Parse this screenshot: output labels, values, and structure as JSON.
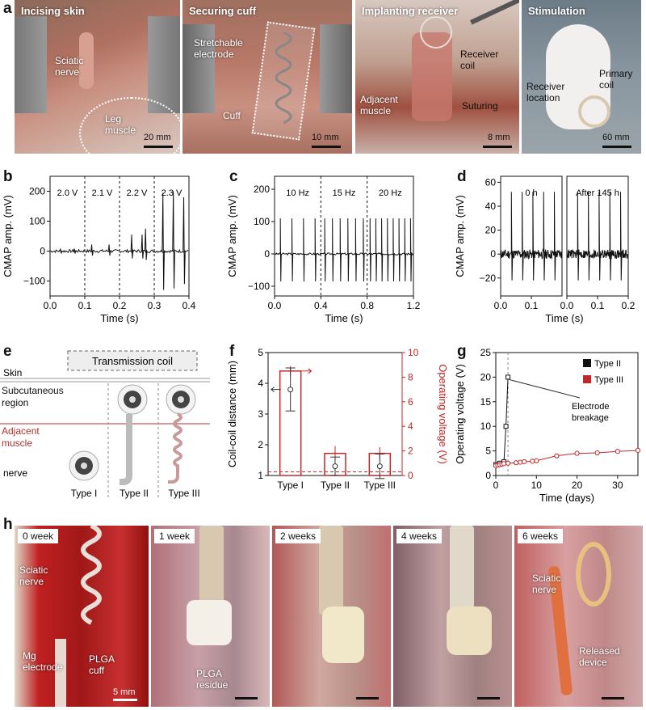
{
  "panel_labels": {
    "a": "a",
    "b": "b",
    "c": "c",
    "d": "d",
    "e": "e",
    "f": "f",
    "g": "g",
    "h": "h"
  },
  "panel_a": {
    "photos": [
      {
        "title": "Incising skin",
        "annotations": [
          "Sciatic nerve",
          "Leg muscle"
        ],
        "scale": "20 mm"
      },
      {
        "title": "Securing cuff",
        "annotations": [
          "Stretchable electrode",
          "Cuff"
        ],
        "scale": "10 mm"
      },
      {
        "title": "Implanting receiver",
        "annotations": [
          "Receiver coil",
          "Adjacent muscle",
          "Suturing"
        ],
        "scale": "8 mm"
      },
      {
        "title": "Stimulation",
        "annotations": [
          "Primary coil",
          "Receiver location"
        ],
        "scale": "60 mm"
      }
    ]
  },
  "panel_e": {
    "transmission_coil": "Transmission coil",
    "layers": [
      "Skin",
      "Subcutaneous region",
      "Adjacent muscle",
      "nerve"
    ],
    "types": [
      "Type I",
      "Type II",
      "Type III"
    ],
    "colors": {
      "muscle_line": "#b03030"
    }
  },
  "panel_h": {
    "photos": [
      {
        "title": "0 week",
        "annotations": [
          "Sciatic nerve",
          "Mg electrode",
          "PLGA cuff"
        ],
        "scale": "5 mm"
      },
      {
        "title": "1 week",
        "annotations": [
          "PLGA residue"
        ]
      },
      {
        "title": "2 weeks",
        "annotations": []
      },
      {
        "title": "4 weeks",
        "annotations": []
      },
      {
        "title": "6 weeks",
        "annotations": [
          "Sciatic nerve",
          "Released device"
        ]
      }
    ]
  },
  "chart_data": [
    {
      "id": "b",
      "type": "line",
      "xlabel": "Time (s)",
      "ylabel": "CMAP amp. (mV)",
      "xlim": [
        0,
        0.4
      ],
      "ylim": [
        -150,
        250
      ],
      "xticks": [
        "0.0",
        "0.1",
        "0.2",
        "0.3",
        "0.4"
      ],
      "yticks": [
        "−100",
        "0",
        "100",
        "200"
      ],
      "segments": [
        "2.0 V",
        "2.1 V",
        "2.2 V",
        "2.3 V"
      ],
      "dividers": [
        0.1,
        0.2,
        0.3
      ],
      "spikes": [
        {
          "x": 0.03,
          "up": 8,
          "down": -8
        },
        {
          "x": 0.07,
          "up": 8,
          "down": -8
        },
        {
          "x": 0.12,
          "up": 22,
          "down": -15
        },
        {
          "x": 0.17,
          "up": 22,
          "down": -15
        },
        {
          "x": 0.235,
          "up": 55,
          "down": -25
        },
        {
          "x": 0.265,
          "up": 55,
          "down": -25
        },
        {
          "x": 0.275,
          "up": 75,
          "down": -30
        },
        {
          "x": 0.325,
          "up": 195,
          "down": -130
        },
        {
          "x": 0.355,
          "up": 200,
          "down": -125
        },
        {
          "x": 0.385,
          "up": 180,
          "down": -110
        }
      ]
    },
    {
      "id": "c",
      "type": "line",
      "xlabel": "Time (s)",
      "ylabel": "CMAP amp. (mV)",
      "xlim": [
        0,
        1.2
      ],
      "ylim": [
        -130,
        240
      ],
      "xticks": [
        "0.0",
        "0.4",
        "0.8",
        "1.2"
      ],
      "yticks": [
        "−100",
        "0",
        "100",
        "200"
      ],
      "segments": [
        "10 Hz",
        "15 Hz",
        "20 Hz"
      ],
      "dividers": [
        0.4,
        0.8
      ],
      "rates": [
        10,
        15,
        20
      ],
      "amp_up": 110,
      "amp_down": -85
    },
    {
      "id": "d",
      "type": "line",
      "xlabel": "Time (s)",
      "ylabel": "CMAP amp. (mV)",
      "xlim": [
        0,
        0.2
      ],
      "ylim": [
        -35,
        65
      ],
      "xticks": [
        "0.0",
        "0.1",
        "0.2"
      ],
      "yticks": [
        "−20",
        "0",
        "20",
        "40",
        "60"
      ],
      "panels": [
        "0 h",
        "After 145 h"
      ],
      "amp_up": 52,
      "amp_down": -22
    },
    {
      "id": "f",
      "type": "bar",
      "categories": [
        "Type I",
        "Type II",
        "Type III"
      ],
      "ylabel": "Coil-coil distance (mm)",
      "ylabel_right": "Operating voltage (V)",
      "ylim": [
        1,
        5
      ],
      "ylim_right": [
        0,
        10
      ],
      "yticks": [
        "1",
        "2",
        "3",
        "4",
        "5"
      ],
      "yticks_right": [
        "0",
        "2",
        "4",
        "6",
        "8",
        "10"
      ],
      "distance": [
        3.8,
        1.3,
        1.3
      ],
      "distance_err": [
        0.7,
        0.3,
        0.4
      ],
      "voltage": [
        8.5,
        1.8,
        1.8
      ],
      "voltage_err": [
        0.4,
        0.6,
        0.5
      ],
      "threshold_voltage": 0.3,
      "colors": {
        "voltage": "#c0282a",
        "distance": "#333333"
      }
    },
    {
      "id": "g",
      "type": "line",
      "xlabel": "Time (days)",
      "ylabel": "Operating voltage (V)",
      "xlim": [
        0,
        35
      ],
      "ylim": [
        0,
        25
      ],
      "xticks": [
        "0",
        "10",
        "20",
        "30"
      ],
      "yticks": [
        "0",
        "5",
        "10",
        "15",
        "20",
        "25"
      ],
      "series": [
        {
          "name": "Type II",
          "color": "#111111",
          "x": [
            0,
            1,
            2,
            2.5,
            3
          ],
          "y": [
            2.2,
            2.5,
            2.8,
            10,
            20
          ]
        },
        {
          "name": "Type III",
          "color": "#c0282a",
          "x": [
            0,
            0.5,
            1,
            1.5,
            2,
            3,
            5,
            6,
            7,
            9,
            10,
            15,
            20,
            25,
            30,
            35
          ],
          "y": [
            2.0,
            2.1,
            2.2,
            2.3,
            2.4,
            2.5,
            2.6,
            2.7,
            2.8,
            2.9,
            3.0,
            4.0,
            4.5,
            4.6,
            4.9,
            5.1
          ]
        }
      ],
      "annotation": "Electrode breakage",
      "breakage_day": 3
    }
  ]
}
